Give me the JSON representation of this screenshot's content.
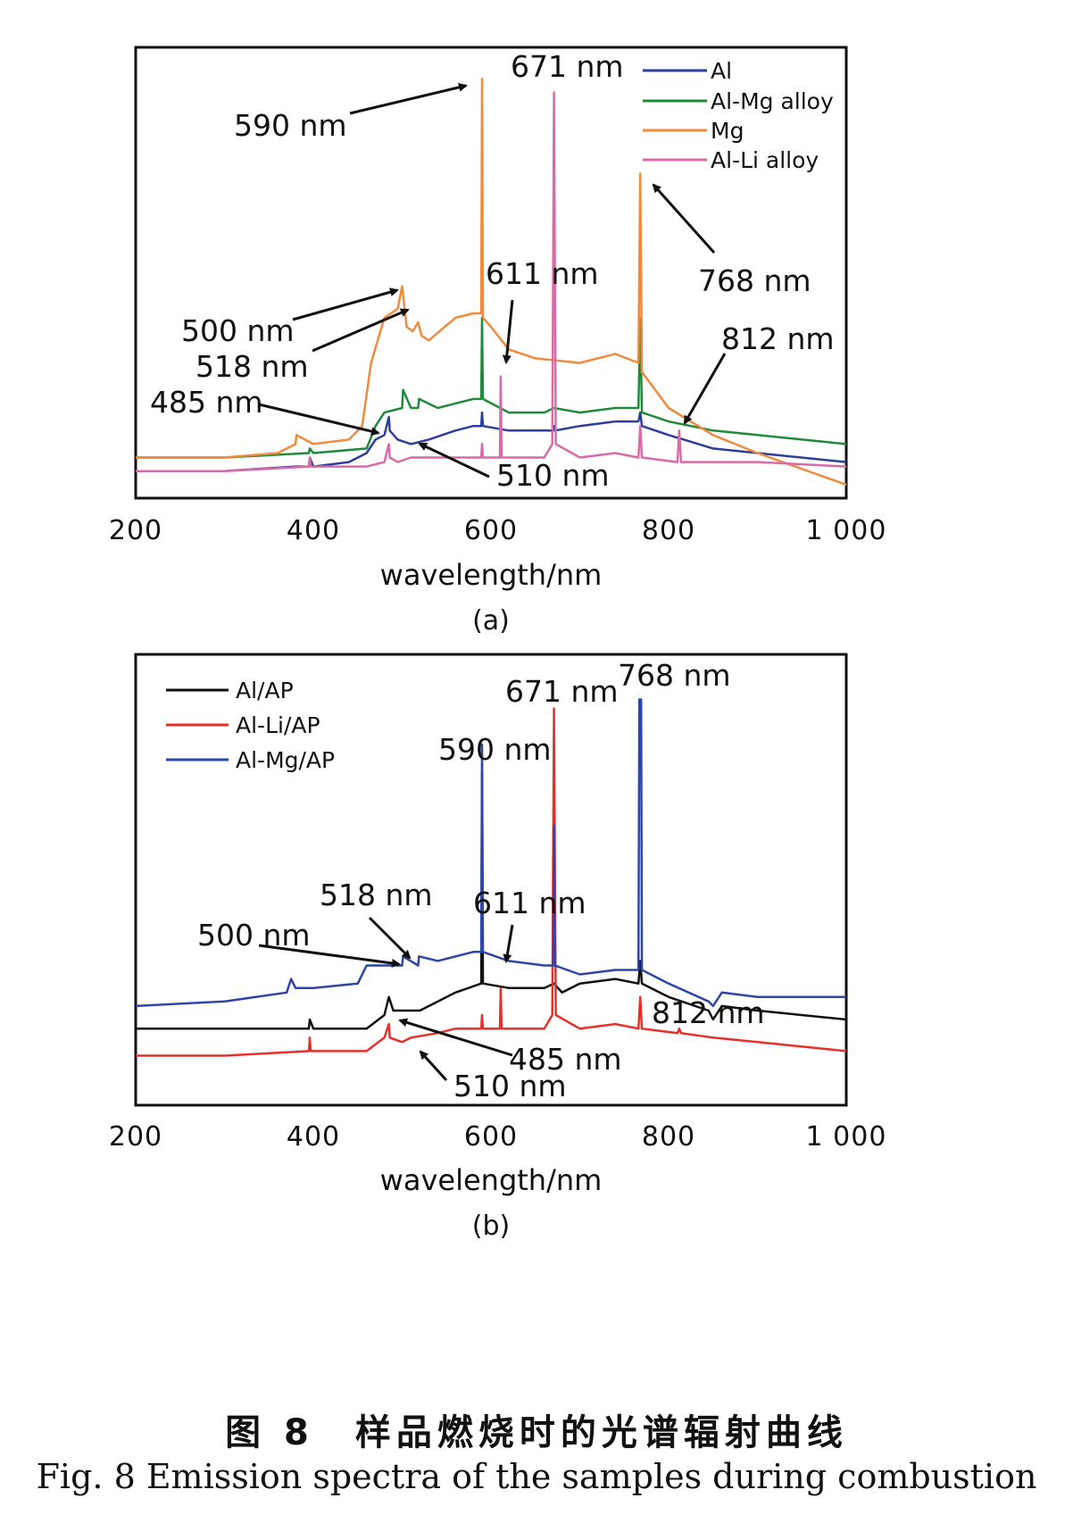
{
  "figure": {
    "caption_cn": "图 8　样品燃烧时的光谱辐射曲线",
    "caption_en": "Fig. 8    Emission spectra of the samples during combustion"
  },
  "chart_data": [
    {
      "type": "line",
      "panel": "(a)",
      "xlabel": "wavelength/nm",
      "ylabel": "",
      "xlim": [
        200,
        1000
      ],
      "ylim": [
        0,
        100
      ],
      "y_units": "relative intensity (unlabeled, estimated)",
      "x_ticks": [
        200,
        400,
        600,
        800,
        1000
      ],
      "x_tick_labels": [
        "200",
        "400",
        "600",
        "800",
        "1 000"
      ],
      "grid": false,
      "legend_position": "top-right",
      "series": [
        {
          "name": "Al",
          "color": "#2e3f9a",
          "x": [
            200,
            300,
            380,
            395,
            396,
            400,
            440,
            460,
            470,
            480,
            485,
            486,
            495,
            510,
            530,
            560,
            580,
            589,
            590,
            591,
            620,
            660,
            670,
            671,
            672,
            700,
            740,
            766,
            768,
            770,
            800,
            850,
            900,
            1000
          ],
          "y": [
            6,
            6,
            7,
            7,
            9,
            7,
            8,
            10,
            13,
            14,
            18,
            15,
            13,
            12,
            13,
            15,
            16,
            16,
            19,
            16,
            15,
            15,
            15,
            16,
            15,
            16,
            17,
            17,
            19,
            16,
            14,
            11,
            10,
            8
          ]
        },
        {
          "name": "Al-Mg alloy",
          "color": "#1f8a3a",
          "x": [
            200,
            300,
            395,
            396,
            400,
            460,
            470,
            480,
            500,
            501,
            510,
            518,
            519,
            540,
            580,
            589,
            590,
            591,
            620,
            660,
            671,
            700,
            740,
            766,
            768,
            770,
            800,
            850,
            900,
            1000
          ],
          "y": [
            9,
            9,
            10,
            11,
            10,
            11,
            16,
            19,
            20,
            24,
            20,
            20,
            22,
            20,
            22,
            22,
            40,
            22,
            19,
            19,
            20,
            19,
            20,
            20,
            40,
            19,
            17,
            15,
            14,
            12
          ]
        },
        {
          "name": "Mg",
          "color": "#f08a3c",
          "x": [
            200,
            300,
            360,
            380,
            381,
            400,
            440,
            455,
            465,
            480,
            495,
            500,
            505,
            512,
            518,
            522,
            530,
            560,
            580,
            589,
            590,
            591,
            600,
            620,
            650,
            700,
            740,
            766,
            768,
            770,
            800,
            850,
            900,
            1000
          ],
          "y": [
            9,
            9,
            10,
            12,
            14,
            12,
            13,
            16,
            30,
            40,
            42,
            47,
            38,
            37,
            39,
            36,
            35,
            40,
            41,
            41,
            93,
            40,
            38,
            33,
            31,
            30,
            32,
            30,
            72,
            28,
            20,
            14,
            10,
            3
          ]
        },
        {
          "name": "Al-Li alloy",
          "color": "#d96aa8",
          "x": [
            200,
            300,
            395,
            396,
            397,
            460,
            480,
            485,
            486,
            495,
            510,
            540,
            560,
            589,
            590,
            591,
            610,
            611,
            612,
            660,
            669,
            671,
            673,
            700,
            740,
            766,
            768,
            770,
            810,
            812,
            814,
            850,
            900,
            1000
          ],
          "y": [
            6,
            6,
            7,
            9,
            7,
            7,
            8,
            12,
            9,
            8,
            9,
            9,
            9,
            9,
            12,
            9,
            9,
            27,
            9,
            9,
            12,
            90,
            12,
            9,
            10,
            9,
            16,
            9,
            8,
            15,
            8,
            8,
            8,
            7
          ]
        }
      ],
      "annotations": [
        "590 nm",
        "671 nm",
        "768 nm",
        "611 nm",
        "500 nm",
        "518 nm",
        "812 nm",
        "485 nm",
        "510 nm"
      ]
    },
    {
      "type": "line",
      "panel": "(b)",
      "xlabel": "wavelength/nm",
      "ylabel": "",
      "xlim": [
        200,
        1000
      ],
      "ylim": [
        0,
        100
      ],
      "y_units": "relative intensity (unlabeled, estimated)",
      "x_ticks": [
        200,
        400,
        600,
        800,
        1000
      ],
      "x_tick_labels": [
        "200",
        "400",
        "600",
        "800",
        "1 000"
      ],
      "grid": false,
      "legend_position": "top-left",
      "series": [
        {
          "name": "Al/AP",
          "color": "#111111",
          "x": [
            200,
            300,
            395,
            396,
            400,
            460,
            480,
            485,
            490,
            500,
            520,
            560,
            589,
            590,
            591,
            620,
            660,
            671,
            680,
            700,
            740,
            766,
            768,
            770,
            800,
            845,
            850,
            860,
            900,
            1000
          ],
          "y": [
            17,
            17,
            17,
            19,
            17,
            17,
            20,
            24,
            21,
            21,
            21,
            25,
            27,
            74,
            27,
            26,
            26,
            27,
            25,
            27,
            28,
            27,
            32,
            27,
            24,
            21,
            19,
            22,
            21,
            19
          ]
        },
        {
          "name": "Al-Li/AP",
          "color": "#e8302a",
          "x": [
            200,
            300,
            395,
            396,
            397,
            460,
            480,
            485,
            486,
            500,
            510,
            540,
            560,
            589,
            590,
            591,
            610,
            611,
            612,
            660,
            669,
            671,
            673,
            700,
            740,
            766,
            768,
            770,
            810,
            812,
            814,
            850,
            900,
            1000
          ],
          "y": [
            11,
            11,
            12,
            15,
            12,
            12,
            15,
            18,
            15,
            14,
            15,
            16,
            17,
            17,
            20,
            17,
            17,
            26,
            17,
            17,
            20,
            88,
            20,
            17,
            18,
            17,
            24,
            17,
            16,
            17,
            16,
            15,
            14,
            12
          ]
        },
        {
          "name": "Al-Mg/AP",
          "color": "#2f45a8",
          "x": [
            200,
            300,
            370,
            375,
            380,
            400,
            450,
            460,
            480,
            500,
            501,
            518,
            519,
            540,
            580,
            589,
            590,
            591,
            620,
            660,
            670,
            671,
            672,
            700,
            740,
            766,
            767,
            768,
            769,
            770,
            800,
            845,
            850,
            860,
            900,
            1000
          ],
          "y": [
            22,
            23,
            25,
            28,
            26,
            26,
            27,
            31,
            31,
            31,
            33,
            31,
            33,
            32,
            34,
            34,
            80,
            34,
            32,
            31,
            31,
            62,
            31,
            29,
            30,
            30,
            90,
            90,
            90,
            30,
            27,
            23,
            22,
            25,
            24,
            24
          ]
        }
      ],
      "annotations": [
        "671 nm",
        "768 nm",
        "590 nm",
        "518 nm",
        "611 nm",
        "500 nm",
        "812 nm",
        "485 nm",
        "510 nm"
      ]
    }
  ]
}
